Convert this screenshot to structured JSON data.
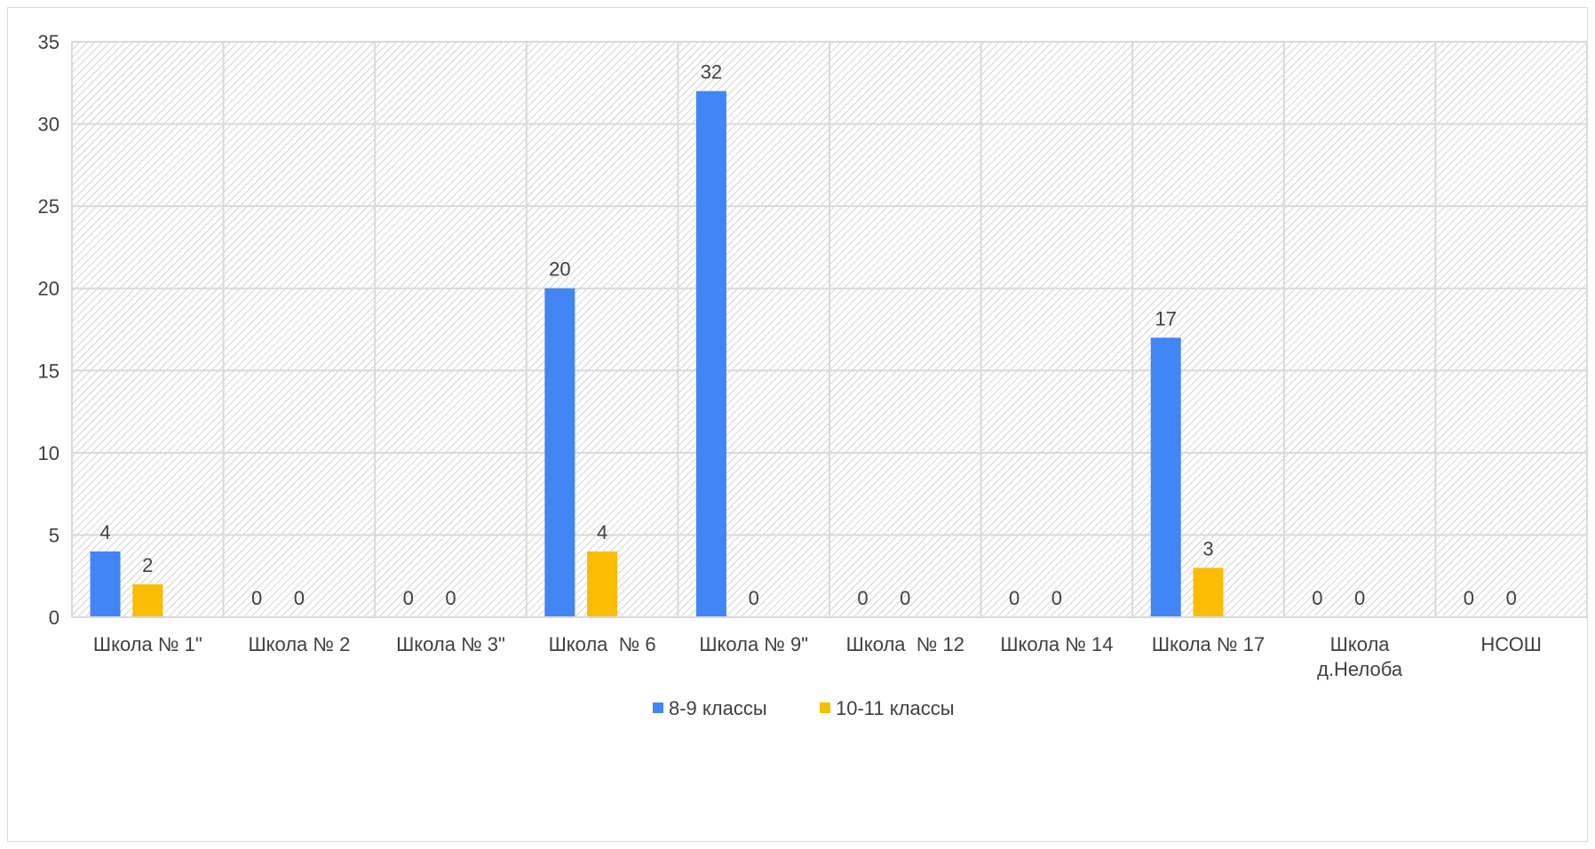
{
  "chart_data": {
    "type": "bar",
    "categories": [
      [
        "Школа № 1\""
      ],
      [
        "Школа № 2"
      ],
      [
        "Школа № 3\""
      ],
      [
        "Школа  № 6"
      ],
      [
        "Школа № 9\""
      ],
      [
        "Школа  № 12"
      ],
      [
        "Школа № 14"
      ],
      [
        "Школа № 17"
      ],
      [
        "Школа",
        "д.Нелоба"
      ],
      [
        "НСОШ"
      ]
    ],
    "series": [
      {
        "name": "8-9 классы",
        "color": "#4285f4",
        "values": [
          4,
          0,
          0,
          20,
          32,
          0,
          0,
          17,
          0,
          0
        ]
      },
      {
        "name": "10-11 классы",
        "color": "#fbbc04",
        "values": [
          2,
          0,
          0,
          4,
          0,
          0,
          0,
          3,
          0,
          0
        ]
      }
    ],
    "ylim": [
      0,
      35
    ],
    "yticks": [
      0,
      5,
      10,
      15,
      20,
      25,
      30,
      35
    ],
    "grid": true,
    "legend_position": "bottom",
    "title": "",
    "xlabel": "",
    "ylabel": ""
  }
}
